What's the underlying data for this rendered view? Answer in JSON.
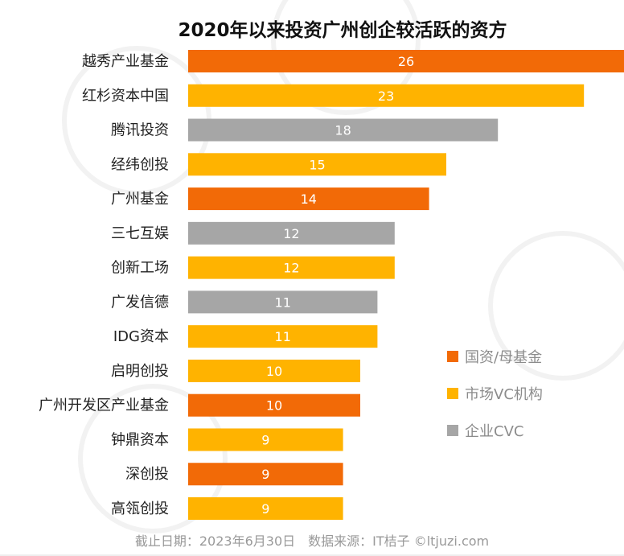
{
  "chart_data": {
    "type": "bar",
    "orientation": "horizontal",
    "title": "2020年以来投资广州创企较活跃的资方",
    "categories": [
      "越秀产业基金",
      "红杉资本中国",
      "腾讯投资",
      "经纬创投",
      "广州基金",
      "三七互娱",
      "创新工场",
      "广发信德",
      "IDG资本",
      "启明创投",
      "广州开发区产业基金",
      "钟鼎资本",
      "深创投",
      "高瓴创投"
    ],
    "values": [
      26,
      23,
      18,
      15,
      14,
      12,
      12,
      11,
      11,
      10,
      10,
      9,
      9,
      9
    ],
    "groups": [
      "state",
      "vc",
      "cvc",
      "vc",
      "state",
      "cvc",
      "vc",
      "cvc",
      "vc",
      "vc",
      "state",
      "vc",
      "state",
      "vc"
    ],
    "legend": [
      {
        "key": "state",
        "label": "国资/母基金",
        "color": "#f26a07"
      },
      {
        "key": "vc",
        "label": "市场VC机构",
        "color": "#ffb300"
      },
      {
        "key": "cvc",
        "label": "企业CVC",
        "color": "#a6a6a6"
      }
    ],
    "legend_position": "right",
    "xlabel": "",
    "ylabel": "",
    "xlim": [
      0,
      25
    ],
    "grid": false
  },
  "footer": "截止日期：2023年6月30日　数据来源：IT桔子 ©ltjuzi.com",
  "watermark": "IT桔子"
}
